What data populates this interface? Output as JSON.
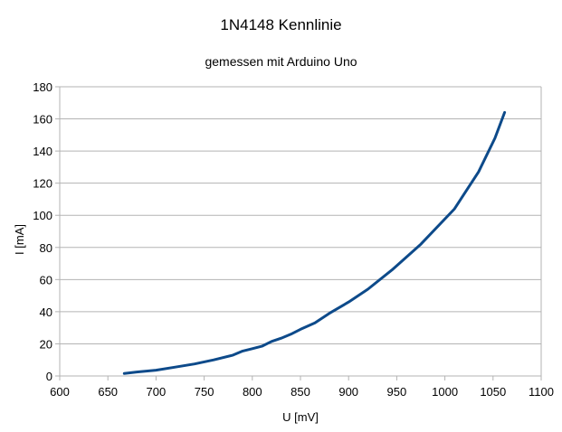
{
  "chart_data": {
    "type": "line",
    "title": "1N4148 Kennlinie",
    "subtitle": "gemessen mit Arduino Uno",
    "xlabel": "U [mV]",
    "ylabel": "I [mA]",
    "xlim": [
      600,
      1100
    ],
    "ylim": [
      0,
      180
    ],
    "xticks": [
      600,
      650,
      700,
      750,
      800,
      850,
      900,
      950,
      1000,
      1050,
      1100
    ],
    "yticks": [
      0,
      20,
      40,
      60,
      80,
      100,
      120,
      140,
      160,
      180
    ],
    "grid": "horizontal",
    "series_color": "#0d4a8a",
    "series": [
      {
        "x": [
          667,
          680,
          700,
          720,
          740,
          760,
          780,
          790,
          800,
          810,
          820,
          830,
          840,
          850,
          865,
          880,
          900,
          920,
          945,
          975,
          1010,
          1035,
          1052,
          1062
        ],
        "y": [
          1.5,
          2.5,
          3.6,
          5.5,
          7.5,
          10,
          13,
          15.5,
          17,
          18.5,
          21.5,
          23.5,
          26,
          29,
          33,
          39,
          46,
          54,
          66,
          82,
          104,
          127,
          148,
          164
        ]
      }
    ]
  }
}
